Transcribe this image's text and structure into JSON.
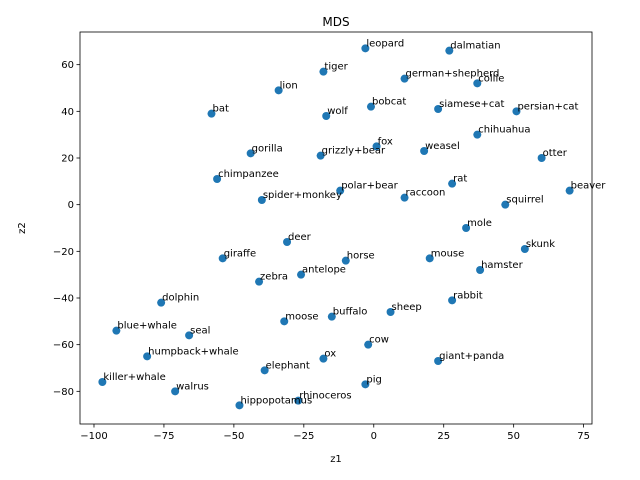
{
  "chart_data": {
    "type": "scatter",
    "title": "MDS",
    "xlabel": "z1",
    "ylabel": "z2",
    "xlim": [
      -105,
      78
    ],
    "ylim": [
      -94,
      74
    ],
    "xticks": [
      -100,
      -75,
      -50,
      -25,
      0,
      25,
      50,
      75
    ],
    "yticks": [
      -80,
      -60,
      -40,
      -20,
      0,
      20,
      40,
      60
    ],
    "grid": false,
    "color": "#1f77b4",
    "points": [
      {
        "label": "leopard",
        "x": -3,
        "y": 67
      },
      {
        "label": "dalmatian",
        "x": 27,
        "y": 66
      },
      {
        "label": "tiger",
        "x": -18,
        "y": 57
      },
      {
        "label": "german+shepherd",
        "x": 11,
        "y": 54
      },
      {
        "label": "collie",
        "x": 37,
        "y": 52
      },
      {
        "label": "lion",
        "x": -34,
        "y": 49
      },
      {
        "label": "bobcat",
        "x": -1,
        "y": 42
      },
      {
        "label": "siamese+cat",
        "x": 23,
        "y": 41
      },
      {
        "label": "persian+cat",
        "x": 51,
        "y": 40
      },
      {
        "label": "bat",
        "x": -58,
        "y": 39
      },
      {
        "label": "wolf",
        "x": -17,
        "y": 38
      },
      {
        "label": "chihuahua",
        "x": 37,
        "y": 30
      },
      {
        "label": "fox",
        "x": 1,
        "y": 25
      },
      {
        "label": "weasel",
        "x": 18,
        "y": 23
      },
      {
        "label": "gorilla",
        "x": -44,
        "y": 22
      },
      {
        "label": "grizzly+bear",
        "x": -19,
        "y": 21
      },
      {
        "label": "otter",
        "x": 60,
        "y": 20
      },
      {
        "label": "chimpanzee",
        "x": -56,
        "y": 11
      },
      {
        "label": "rat",
        "x": 28,
        "y": 9
      },
      {
        "label": "polar+bear",
        "x": -12,
        "y": 6
      },
      {
        "label": "beaver",
        "x": 70,
        "y": 6
      },
      {
        "label": "raccoon",
        "x": 11,
        "y": 3
      },
      {
        "label": "spider+monkey",
        "x": -40,
        "y": 2
      },
      {
        "label": "squirrel",
        "x": 47,
        "y": 0
      },
      {
        "label": "mole",
        "x": 33,
        "y": -10
      },
      {
        "label": "deer",
        "x": -31,
        "y": -16
      },
      {
        "label": "skunk",
        "x": 54,
        "y": -19
      },
      {
        "label": "giraffe",
        "x": -54,
        "y": -23
      },
      {
        "label": "horse",
        "x": -10,
        "y": -24
      },
      {
        "label": "mouse",
        "x": 20,
        "y": -23
      },
      {
        "label": "hamster",
        "x": 38,
        "y": -28
      },
      {
        "label": "antelope",
        "x": -26,
        "y": -30
      },
      {
        "label": "zebra",
        "x": -41,
        "y": -33
      },
      {
        "label": "rabbit",
        "x": 28,
        "y": -41
      },
      {
        "label": "dolphin",
        "x": -76,
        "y": -42
      },
      {
        "label": "sheep",
        "x": 6,
        "y": -46
      },
      {
        "label": "buffalo",
        "x": -15,
        "y": -48
      },
      {
        "label": "moose",
        "x": -32,
        "y": -50
      },
      {
        "label": "blue+whale",
        "x": -92,
        "y": -54
      },
      {
        "label": "seal",
        "x": -66,
        "y": -56
      },
      {
        "label": "cow",
        "x": -2,
        "y": -60
      },
      {
        "label": "humpback+whale",
        "x": -81,
        "y": -65
      },
      {
        "label": "ox",
        "x": -18,
        "y": -66
      },
      {
        "label": "giant+panda",
        "x": 23,
        "y": -67
      },
      {
        "label": "elephant",
        "x": -39,
        "y": -71
      },
      {
        "label": "killer+whale",
        "x": -97,
        "y": -76
      },
      {
        "label": "pig",
        "x": -3,
        "y": -77
      },
      {
        "label": "walrus",
        "x": -71,
        "y": -80
      },
      {
        "label": "rhinoceros",
        "x": -27,
        "y": -84
      },
      {
        "label": "hippopotamus",
        "x": -48,
        "y": -86
      }
    ]
  }
}
